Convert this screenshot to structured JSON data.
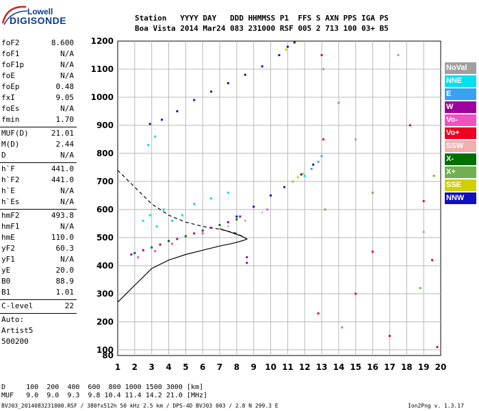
{
  "logo": {
    "line1": "Lowell",
    "line2": "DIGISONDE"
  },
  "header": {
    "line1": "Station   YYYY DAY   DDD HHMMSS P1  FFS S AXN PPS IGA PS",
    "line2": "Boa Vista 2014 Mar24 083 231000 RSF 005 2 713 100 03+ B5"
  },
  "params": {
    "group1": [
      {
        "k": "foF2",
        "v": "8.600"
      },
      {
        "k": "foF1",
        "v": "N/A"
      },
      {
        "k": "foF1p",
        "v": "N/A"
      },
      {
        "k": "foE",
        "v": "N/A"
      },
      {
        "k": "foEp",
        "v": "0.48"
      },
      {
        "k": "fxI",
        "v": "9.05"
      },
      {
        "k": "foEs",
        "v": "N/A"
      },
      {
        "k": "fmin",
        "v": "1.70"
      }
    ],
    "group2": [
      {
        "k": "MUF(D)",
        "v": "21.01"
      },
      {
        "k": "M(D)",
        "v": "2.44"
      },
      {
        "k": "D",
        "v": "N/A"
      }
    ],
    "group3": [
      {
        "k": "h`F",
        "v": "441.0"
      },
      {
        "k": "h`F2",
        "v": "441.0"
      },
      {
        "k": "h`E",
        "v": "N/A"
      },
      {
        "k": "h`Es",
        "v": "N/A"
      }
    ],
    "group4": [
      {
        "k": "hmF2",
        "v": "493.8"
      },
      {
        "k": "hmF1",
        "v": "N/A"
      },
      {
        "k": "hmE",
        "v": "110.0"
      },
      {
        "k": "yF2",
        "v": "60.3"
      },
      {
        "k": "yF1",
        "v": "N/A"
      },
      {
        "k": "yE",
        "v": "20.0"
      },
      {
        "k": "B0",
        "v": "88.9"
      },
      {
        "k": "B1",
        "v": "1.01"
      }
    ],
    "group5": [
      {
        "k": "C-level",
        "v": "22"
      }
    ],
    "auto": [
      "Auto:",
      "Artist5",
      "500200"
    ]
  },
  "legend": [
    {
      "label": "NoVal",
      "color": "#a0a0a0"
    },
    {
      "label": "NNE",
      "color": "#00e0f0"
    },
    {
      "label": "E",
      "color": "#3aa0f0"
    },
    {
      "label": "W",
      "color": "#a000a0"
    },
    {
      "label": "Vo-",
      "color": "#f050c0"
    },
    {
      "label": "Vo+",
      "color": "#f00020"
    },
    {
      "label": "SSW",
      "color": "#f0b0b0"
    },
    {
      "label": "X-",
      "color": "#007000"
    },
    {
      "label": "X+",
      "color": "#70b050"
    },
    {
      "label": "SSE",
      "color": "#d0d000"
    },
    {
      "label": "NNW",
      "color": "#1010c0"
    }
  ],
  "footer": {
    "d_row": "D     100  200  400  600  800 1000 1500 3000 [km]",
    "muf_row": "MUF   9.0  9.0  9.3  9.8 10.4 11.4 14.2 21.0 [MHz]",
    "file_line": "BVJ03_2014083231000.RSF / 380fx512h 50 kHz 2.5 km / DPS-4D BVJ03 003 / 2.8 N 299.3 E",
    "version": "Ion2Png v. 1.3.17"
  },
  "chart_data": {
    "type": "scatter",
    "title": "",
    "xlabel": "",
    "ylabel": "",
    "x_ticks": [
      1,
      2,
      3,
      4,
      5,
      6,
      7,
      8,
      9,
      10,
      11,
      12,
      13,
      14,
      15,
      16,
      17,
      18,
      19,
      20
    ],
    "y_ticks": [
      80,
      100,
      200,
      300,
      400,
      500,
      600,
      700,
      800,
      900,
      1000,
      1100,
      1200
    ],
    "xlim": [
      1,
      20
    ],
    "ylim": [
      80,
      1200
    ],
    "grid": true,
    "series": [
      {
        "name": "NNW",
        "color": "#1010c0",
        "points": [
          [
            2.9,
            905
          ],
          [
            3.6,
            920
          ],
          [
            4.5,
            950
          ],
          [
            5.5,
            990
          ],
          [
            6.5,
            1020
          ],
          [
            7.5,
            1050
          ],
          [
            8.5,
            1080
          ],
          [
            9.5,
            1110
          ],
          [
            10.5,
            1150
          ],
          [
            11.0,
            1180
          ],
          [
            11.4,
            1195
          ],
          [
            8.0,
            575
          ],
          [
            9.0,
            610
          ],
          [
            10.0,
            650
          ],
          [
            10.8,
            680
          ],
          [
            11.3,
            700
          ],
          [
            11.8,
            725
          ],
          [
            12.5,
            760
          ]
        ]
      },
      {
        "name": "W",
        "color": "#a000a0",
        "points": [
          [
            1.8,
            440
          ],
          [
            2.5,
            455
          ],
          [
            3.5,
            475
          ],
          [
            4.5,
            495
          ],
          [
            5.5,
            515
          ],
          [
            6.5,
            535
          ],
          [
            7.5,
            555
          ],
          [
            8.2,
            575
          ],
          [
            8.6,
            430
          ],
          [
            8.6,
            410
          ]
        ]
      },
      {
        "name": "X-",
        "color": "#007000",
        "points": [
          [
            2.0,
            445
          ],
          [
            3.0,
            465
          ],
          [
            4.0,
            488
          ],
          [
            5.0,
            505
          ],
          [
            6.0,
            525
          ],
          [
            7.0,
            545
          ],
          [
            8.0,
            565
          ]
        ]
      },
      {
        "name": "NNE",
        "color": "#00e0f0",
        "points": [
          [
            2.5,
            560
          ],
          [
            2.9,
            580
          ],
          [
            3.3,
            540
          ],
          [
            3.7,
            600
          ],
          [
            4.2,
            560
          ],
          [
            4.8,
            580
          ],
          [
            5.5,
            620
          ],
          [
            6.5,
            640
          ],
          [
            7.5,
            660
          ],
          [
            2.8,
            830
          ],
          [
            3.2,
            860
          ],
          [
            12.0,
            720
          ]
        ]
      },
      {
        "name": "Vo-",
        "color": "#f050c0",
        "points": [
          [
            2.2,
            430
          ],
          [
            3.2,
            452
          ],
          [
            4.2,
            478
          ],
          [
            6.0,
            515
          ],
          [
            8.5,
            560
          ],
          [
            9.8,
            600
          ]
        ]
      },
      {
        "name": "SSE",
        "color": "#d0d000",
        "points": [
          [
            11.3,
            700
          ],
          [
            11.6,
            715
          ],
          [
            11.9,
            728
          ],
          [
            10.9,
            1170
          ]
        ]
      },
      {
        "name": "SSW",
        "color": "#f0b0b0",
        "points": [
          [
            7.5,
            540
          ],
          [
            8.5,
            560
          ],
          [
            9.5,
            590
          ]
        ]
      },
      {
        "name": "Vo+",
        "color": "#f00020",
        "points": [
          [
            13.0,
            1150
          ],
          [
            13.1,
            850
          ],
          [
            15.0,
            300
          ],
          [
            16.0,
            450
          ],
          [
            17.0,
            150
          ],
          [
            18.2,
            900
          ],
          [
            19.0,
            630
          ],
          [
            19.5,
            420
          ],
          [
            19.8,
            110
          ],
          [
            12.8,
            230
          ]
        ]
      },
      {
        "name": "X+",
        "color": "#70b050",
        "points": [
          [
            13.2,
            600
          ],
          [
            14.0,
            980
          ],
          [
            14.2,
            180
          ],
          [
            16.0,
            660
          ],
          [
            18.8,
            320
          ],
          [
            19.6,
            720
          ]
        ]
      },
      {
        "name": "E",
        "color": "#3aa0f0",
        "points": [
          [
            12.4,
            745
          ],
          [
            12.8,
            770
          ],
          [
            13.0,
            790
          ]
        ]
      },
      {
        "name": "NoVal",
        "color": "#a0a0a0",
        "points": [
          [
            13.1,
            1100
          ],
          [
            15.0,
            850
          ],
          [
            17.5,
            1150
          ],
          [
            19.0,
            520
          ]
        ]
      }
    ],
    "profile_solid": [
      [
        1,
        270
      ],
      [
        1.5,
        300
      ],
      [
        2,
        330
      ],
      [
        2.5,
        360
      ],
      [
        3,
        390
      ],
      [
        4,
        420
      ],
      [
        5,
        440
      ],
      [
        6,
        455
      ],
      [
        7,
        470
      ],
      [
        7.8,
        480
      ],
      [
        8.4,
        490
      ],
      [
        8.6,
        495
      ],
      [
        8.3,
        505
      ],
      [
        7.6,
        520
      ],
      [
        7,
        532
      ]
    ],
    "profile_dashed": [
      [
        1,
        740
      ],
      [
        1.5,
        710
      ],
      [
        2,
        680
      ],
      [
        2.5,
        650
      ],
      [
        3,
        620
      ],
      [
        4,
        580
      ],
      [
        5,
        555
      ],
      [
        6,
        540
      ],
      [
        7,
        530
      ],
      [
        8,
        515
      ],
      [
        8.6,
        495
      ]
    ]
  }
}
